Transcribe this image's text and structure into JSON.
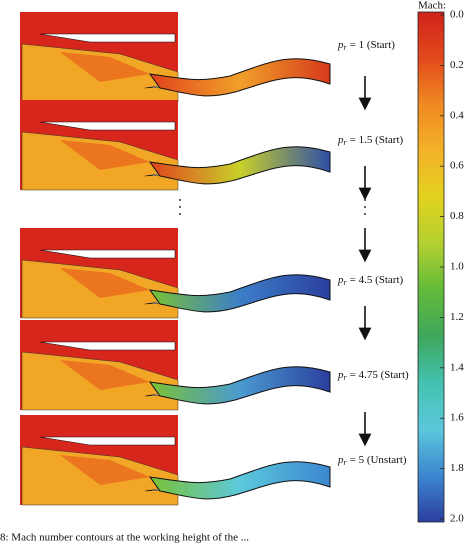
{
  "figure": {
    "colorbar": {
      "title": "Mach:",
      "ticks": [
        {
          "value": 0.0,
          "label": "0.0"
        },
        {
          "value": 0.2,
          "label": "0.2"
        },
        {
          "value": 0.4,
          "label": "0.4"
        },
        {
          "value": 0.6,
          "label": "0.6"
        },
        {
          "value": 0.8,
          "label": "0.8"
        },
        {
          "value": 1.0,
          "label": "1.0"
        },
        {
          "value": 1.2,
          "label": "1.2"
        },
        {
          "value": 1.4,
          "label": "1.4"
        },
        {
          "value": 1.6,
          "label": "1.6"
        },
        {
          "value": 1.8,
          "label": "1.8"
        },
        {
          "value": 2.0,
          "label": "2.0"
        }
      ],
      "range": [
        0.0,
        2.0
      ],
      "colors": [
        "#d0221a",
        "#e24a1c",
        "#f08a22",
        "#f3b228",
        "#e2d21e",
        "#b2d030",
        "#62bb3a",
        "#3ea75c",
        "#44c2b0",
        "#5cc8dc",
        "#3c86d0",
        "#2b3f9e"
      ]
    },
    "panels": [
      {
        "symbol": "p",
        "sub": "r",
        "text": "= 1 (Start)"
      },
      {
        "symbol": "p",
        "sub": "r",
        "text": "= 1.5 (Start)"
      },
      {
        "symbol": "p",
        "sub": "r",
        "text": "= 4.5 (Start)"
      },
      {
        "symbol": "p",
        "sub": "r",
        "text": "= 4.75 (Start)"
      },
      {
        "symbol": "p",
        "sub": "r",
        "text": "= 5 (Unstart)"
      }
    ],
    "caption": "8: Mach number contours at the working height of the ..."
  }
}
